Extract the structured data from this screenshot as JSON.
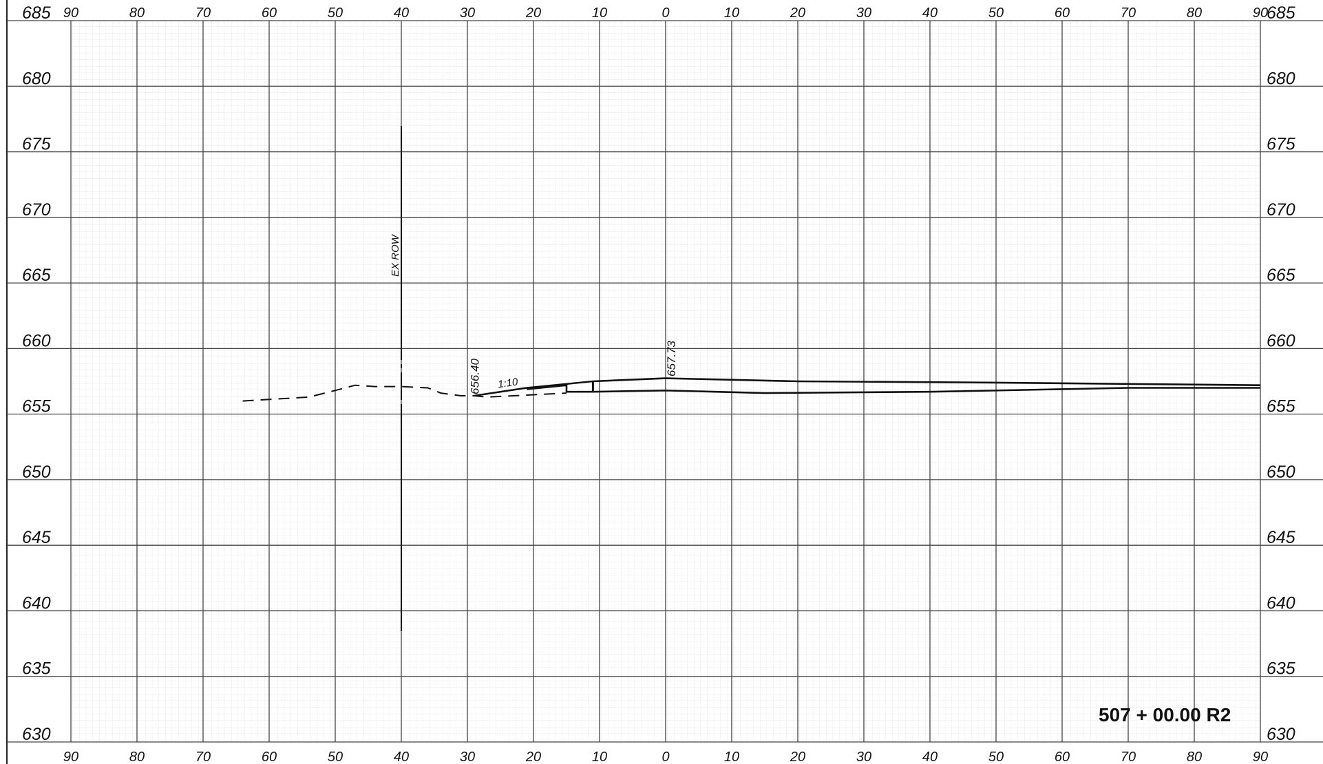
{
  "chart_data": {
    "type": "cross-section",
    "offsets": [
      90,
      80,
      70,
      60,
      50,
      40,
      30,
      20,
      10,
      0,
      10,
      20,
      30,
      40,
      50,
      60,
      70,
      80,
      90
    ],
    "elevations": [
      685,
      680,
      675,
      670,
      665,
      660,
      655,
      650,
      645,
      640,
      635,
      630
    ],
    "xlim": [
      -90,
      90
    ],
    "ylim": [
      630,
      685
    ],
    "grid": true,
    "series": [
      {
        "style": "dashed",
        "points": [
          [
            -64,
            656.0
          ],
          [
            -54,
            656.3
          ],
          [
            -50,
            656.8
          ],
          [
            -47,
            657.2
          ],
          [
            -44,
            657.1
          ],
          [
            -40,
            657.1
          ],
          [
            -36,
            657.0
          ],
          [
            -34,
            656.6
          ],
          [
            -31,
            656.4
          ],
          [
            -29,
            656.4
          ],
          [
            -27,
            656.3
          ],
          [
            -23,
            656.4
          ],
          [
            -15,
            656.6
          ]
        ]
      },
      {
        "style": "solid",
        "points": [
          [
            -29,
            656.4
          ],
          [
            -21,
            657.0
          ],
          [
            -11,
            657.5
          ],
          [
            0,
            657.73
          ],
          [
            20,
            657.5
          ],
          [
            50,
            657.4
          ],
          [
            70,
            657.3
          ],
          [
            90,
            657.2
          ]
        ]
      },
      {
        "style": "solid",
        "points": [
          [
            -21,
            656.9
          ],
          [
            -15,
            657.2
          ],
          [
            -15,
            656.7
          ],
          [
            -11,
            656.7
          ],
          [
            0,
            656.8
          ],
          [
            15,
            656.6
          ],
          [
            40,
            656.7
          ],
          [
            70,
            657.0
          ],
          [
            90,
            657.0
          ]
        ]
      }
    ],
    "annotations": {
      "row_label": "EX ROW",
      "row_offset": -40,
      "left_elev": "656.40",
      "left_elev_offset": -29,
      "slope": "1:10",
      "slope_offset": -25,
      "centerline_elev": "657.73",
      "centerline_offset": 0,
      "station": "507 + 00.00  R2"
    }
  }
}
